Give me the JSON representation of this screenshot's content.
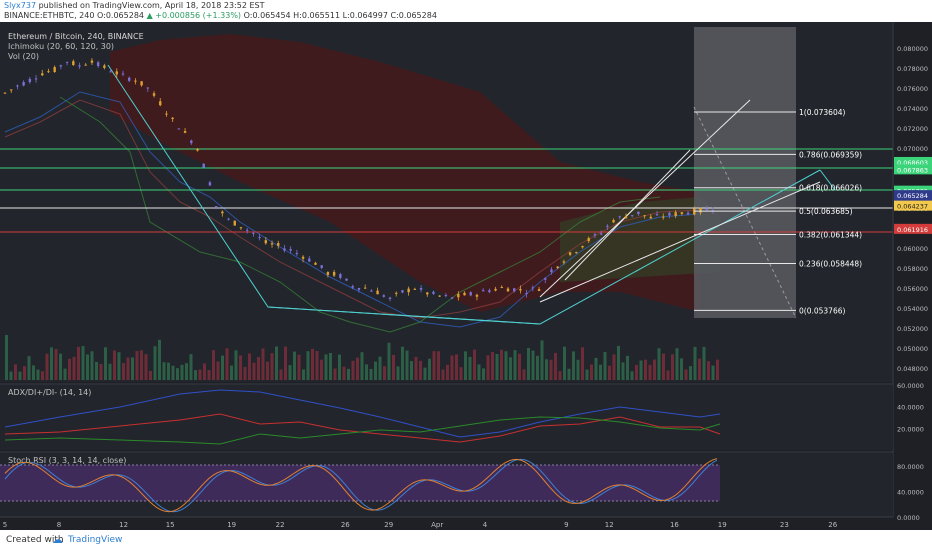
{
  "header": {
    "author": "Slyx737",
    "published": "published on TradingView.com, April 18, 2018 23:52 EST",
    "symbol": "BINANCE:ETHBTC, 240",
    "ohlc_o": "O:0.065284",
    "ohlc_change": "▲ +0.000856 (+1.33%)",
    "ohlc_rest": "O:0.065454  H:0.065511  L:0.064997  C:0.065284"
  },
  "legend": {
    "title": "Ethereum / Bitcoin, 240, BINANCE",
    "ichimoku": "Ichimoku (20, 60, 120, 30)",
    "vol": "Vol (20)",
    "adx": "ADX/DI+/DI- (14, 14)",
    "stoch": "Stoch RSI (3, 3, 14, 14, close)"
  },
  "footer": {
    "created": "Created with",
    "brand": "TradingView",
    "logo": "☁"
  },
  "colors": {
    "bg": "#1e2026",
    "up": "#e0a030",
    "down": "#7b6fd8",
    "fib_box": "#5a5c62",
    "teal": "#4fd0d0",
    "green_line": "#3cd47a",
    "red_line": "#d43c3c"
  },
  "chart_data": [
    {
      "type": "line",
      "title": "Ethereum / Bitcoin, 240, BINANCE",
      "x_ticks": [
        "5",
        "8",
        "12",
        "15",
        "19",
        "22",
        "26",
        "29",
        "Apr",
        "4",
        "9",
        "12",
        "16",
        "19",
        "23",
        "26"
      ],
      "y_ticks": [
        "0.080000",
        "0.078000",
        "0.076000",
        "0.074000",
        "0.072000",
        "0.070000",
        "0.068000",
        "0.066000",
        "0.064000",
        "0.062000",
        "0.060000",
        "0.058000",
        "0.056000",
        "0.054000",
        "0.052000",
        "0.050000",
        "0.048000"
      ],
      "ylim": [
        0.047,
        0.082
      ],
      "price_path": [
        [
          0,
          0.0755
        ],
        [
          2,
          0.0762
        ],
        [
          4,
          0.0768
        ],
        [
          6,
          0.0775
        ],
        [
          8,
          0.0778
        ],
        [
          10,
          0.0787
        ],
        [
          12,
          0.0782
        ],
        [
          14,
          0.0788
        ],
        [
          15,
          0.0783
        ],
        [
          17,
          0.0778
        ],
        [
          19,
          0.0772
        ],
        [
          21,
          0.0768
        ],
        [
          23,
          0.076
        ],
        [
          25,
          0.0745
        ],
        [
          27,
          0.0728
        ],
        [
          29,
          0.0715
        ],
        [
          31,
          0.07
        ],
        [
          33,
          0.0665
        ],
        [
          34,
          0.0642
        ],
        [
          36,
          0.0628
        ],
        [
          38,
          0.0622
        ],
        [
          40,
          0.0615
        ],
        [
          42,
          0.0605
        ],
        [
          44,
          0.0602
        ],
        [
          46,
          0.0598
        ],
        [
          48,
          0.0592
        ],
        [
          50,
          0.0585
        ],
        [
          52,
          0.0575
        ],
        [
          54,
          0.0572
        ],
        [
          56,
          0.0562
        ],
        [
          58,
          0.056
        ],
        [
          60,
          0.0556
        ],
        [
          62,
          0.0549
        ],
        [
          64,
          0.0556
        ],
        [
          66,
          0.056
        ],
        [
          68,
          0.0555
        ],
        [
          70,
          0.0552
        ],
        [
          72,
          0.055
        ],
        [
          74,
          0.0553
        ],
        [
          76,
          0.0554
        ],
        [
          78,
          0.0558
        ],
        [
          80,
          0.056
        ],
        [
          82,
          0.0559
        ],
        [
          84,
          0.0557
        ],
        [
          86,
          0.056
        ],
        [
          88,
          0.0578
        ],
        [
          90,
          0.0588
        ],
        [
          92,
          0.0598
        ],
        [
          94,
          0.0608
        ],
        [
          96,
          0.0615
        ],
        [
          98,
          0.0628
        ],
        [
          100,
          0.0632
        ],
        [
          102,
          0.0635
        ],
        [
          104,
          0.063
        ],
        [
          106,
          0.0632
        ],
        [
          108,
          0.0634
        ],
        [
          110,
          0.0636
        ],
        [
          112,
          0.0637
        ],
        [
          114,
          0.064
        ],
        [
          115,
          0.0652
        ]
      ],
      "x_domain": [
        0,
        143
      ],
      "x_tick_positions": [
        0,
        8.7,
        19.1,
        26.6,
        36.5,
        44.3,
        54.8,
        61.8,
        69.6,
        77.3,
        90.4,
        97.3,
        107.8,
        115.5,
        125.5,
        133.3
      ]
    },
    {
      "type": "table",
      "title": "Fibonacci retracement levels",
      "levels": [
        {
          "label": "1(0.073604)",
          "value": 0.073604
        },
        {
          "label": "0.786(0.069359)",
          "value": 0.069359
        },
        {
          "label": "0.618(0.066026)",
          "value": 0.066026
        },
        {
          "label": "0.5(0.063685)",
          "value": 0.063685
        },
        {
          "label": "0.382(0.061344)",
          "value": 0.061344
        },
        {
          "label": "0.236(0.058448)",
          "value": 0.058448
        },
        {
          "label": "0(0.053766)",
          "value": 0.053766
        }
      ]
    },
    {
      "type": "table",
      "title": "Price axis labels",
      "labels": [
        {
          "text": "0.068603",
          "value": 0.068603,
          "color": "#3cd47a"
        },
        {
          "text": "0.067863",
          "value": 0.067863,
          "color": "#3cd47a"
        },
        {
          "text": "0.065735",
          "value": 0.065735,
          "color": "#3cd47a"
        },
        {
          "text": "0.065284",
          "value": 0.065284,
          "color": "#2f3a8a"
        },
        {
          "text": "03:07:31",
          "value": 0.0643,
          "color": "#2f3a8a"
        },
        {
          "text": "0.064237",
          "value": 0.064237,
          "color": "#f2c94c"
        },
        {
          "text": "0.061916",
          "value": 0.061916,
          "color": "#d43c3c"
        }
      ]
    },
    {
      "type": "line",
      "title": "ADX/DI+/DI- (14, 14)",
      "y_ticks": [
        "60.0000",
        "40.0000",
        "20.0000"
      ],
      "ylim": [
        0,
        60
      ]
    },
    {
      "type": "line",
      "title": "Stoch RSI (3, 3, 14, 14, close)",
      "y_ticks": [
        "80.0000",
        "40.0000",
        "0.0000"
      ],
      "ylim": [
        0,
        100
      ],
      "bands": [
        20,
        80
      ]
    }
  ]
}
